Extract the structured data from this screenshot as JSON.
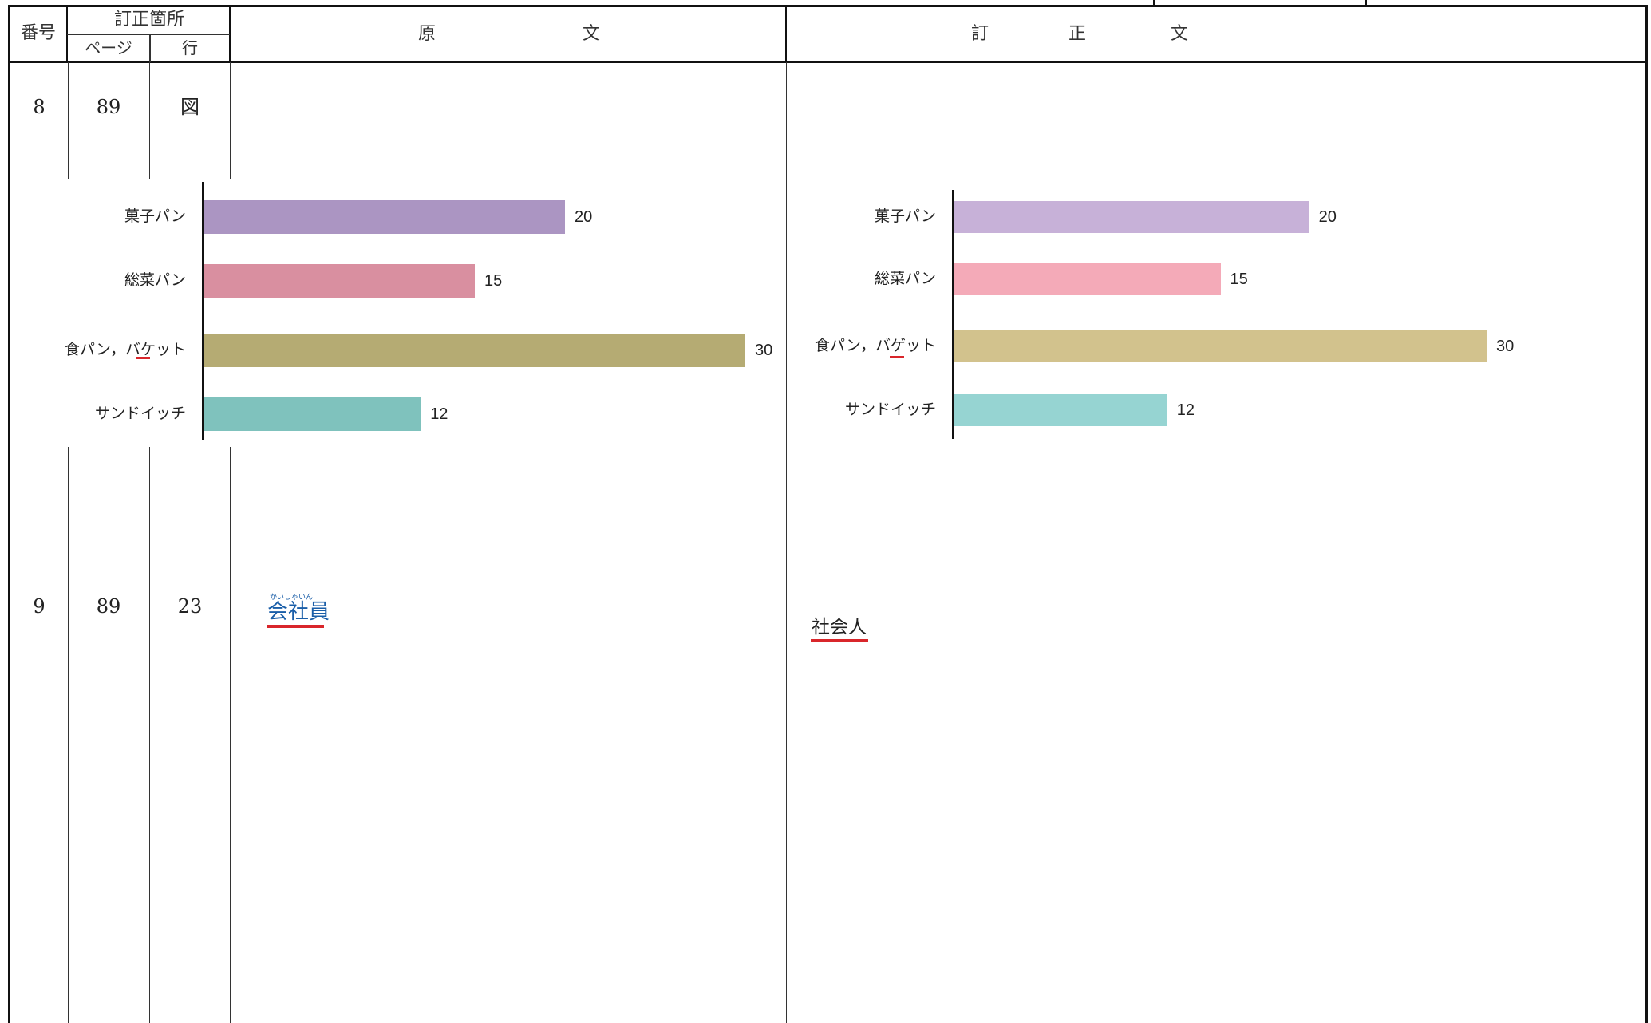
{
  "header": {
    "number": "番号",
    "correction_location": "訂正箇所",
    "page": "ページ",
    "line": "行",
    "original_chars": [
      "原",
      "文"
    ],
    "corrected_chars": [
      "訂",
      "正",
      "文"
    ]
  },
  "rows": [
    {
      "number": "8",
      "page": "89",
      "line": "図"
    },
    {
      "number": "9",
      "page": "89",
      "line": "23"
    }
  ],
  "original_text": {
    "ruby": "かいしゃいん",
    "word": "会社員"
  },
  "corrected_text": {
    "word": "社会人"
  },
  "chart_data": [
    {
      "type": "bar",
      "orientation": "horizontal",
      "categories": [
        "菓子パン",
        "総菜パン",
        "食パン，バケット",
        "サンドイッチ"
      ],
      "values": [
        20,
        15,
        30,
        12
      ],
      "colors": [
        "#ab95c2",
        "#d98fa0",
        "#b5ab73",
        "#7fc2bd"
      ]
    },
    {
      "type": "bar",
      "orientation": "horizontal",
      "categories": [
        "菓子パン",
        "総菜パン",
        "食パン，バゲット",
        "サンドイッチ"
      ],
      "values": [
        20,
        15,
        30,
        12
      ],
      "colors": [
        "#c7b1d8",
        "#f4aab8",
        "#d2c28d",
        "#96d4d2"
      ]
    }
  ]
}
